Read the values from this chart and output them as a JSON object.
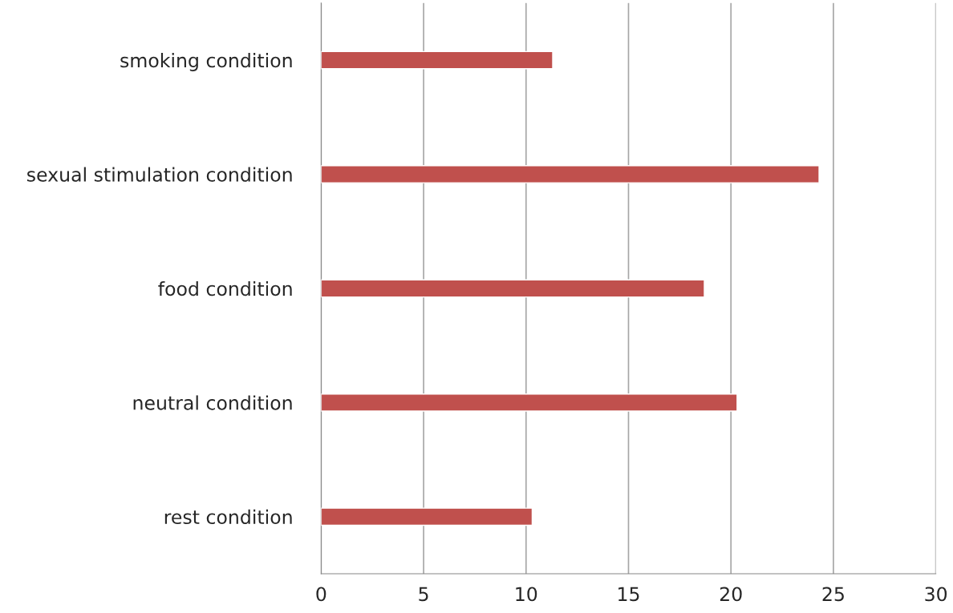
{
  "chart_data": {
    "type": "bar",
    "orientation": "horizontal",
    "categories": [
      "smoking condition",
      "sexual stimulation condition",
      "food condition",
      "neutral condition",
      "rest condition"
    ],
    "values": [
      11.3,
      24.3,
      18.7,
      20.3,
      10.3
    ],
    "color": "#c0504d",
    "xlim": [
      0,
      30
    ],
    "xticks": [
      0,
      5,
      10,
      15,
      20,
      25,
      30
    ],
    "grid": "x"
  }
}
